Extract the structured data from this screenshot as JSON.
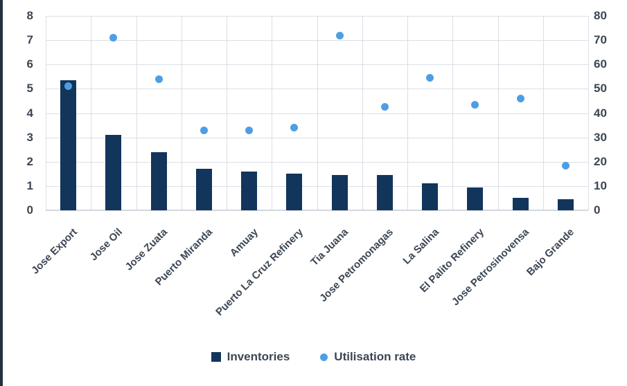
{
  "chart_data": {
    "type": "combo",
    "title": "",
    "categories": [
      "Jose Export",
      "Jose Oil",
      "Jose Zuata",
      "Puerto Miranda",
      "Amuay",
      "Puerto La Cruz Refinery",
      "Tia Juana",
      "Jose Petromonagas",
      "La Salina",
      "El Palito Refinery",
      "Jose Petrosinovensa",
      "Bajo Grande"
    ],
    "series": [
      {
        "name": "Inventories",
        "type": "bar",
        "axis": "left",
        "values": [
          5.35,
          3.1,
          2.4,
          1.7,
          1.6,
          1.5,
          1.45,
          1.45,
          1.1,
          0.95,
          0.5,
          0.45
        ]
      },
      {
        "name": "Utilisation rate",
        "type": "scatter",
        "axis": "right",
        "values": [
          51,
          71,
          54,
          33,
          33,
          34,
          72,
          42.5,
          54.5,
          43.5,
          46,
          18.5
        ]
      }
    ],
    "left_axis": {
      "min": 0,
      "max": 8,
      "step": 1,
      "tick_labels": [
        "0",
        "1",
        "2",
        "3",
        "4",
        "5",
        "6",
        "7",
        "8"
      ]
    },
    "right_axis": {
      "min": 0,
      "max": 80,
      "step": 10,
      "tick_labels": [
        "0",
        "10",
        "20",
        "30",
        "40",
        "50",
        "60",
        "70",
        "80"
      ]
    },
    "grid": true,
    "legend_position": "bottom"
  },
  "colors": {
    "bar": "#12355c",
    "dot": "#4d9ee5",
    "grid": "#dadee4",
    "axis_line": "#d2d7dd",
    "text": "#3b4653",
    "left_strip": "#233140",
    "background": "#ffffff"
  }
}
